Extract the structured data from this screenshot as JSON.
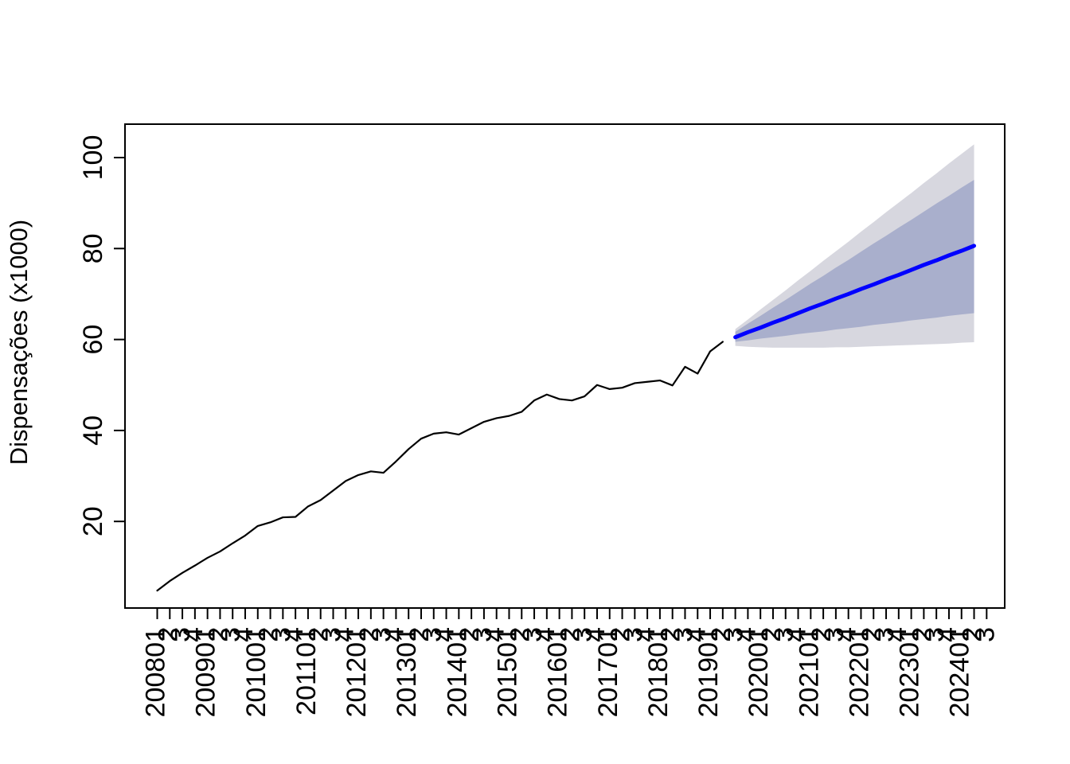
{
  "chart_data": {
    "type": "line",
    "subtype": "time-series-forecast",
    "title": "",
    "xlabel": "",
    "ylabel": "Dispensações (x1000)",
    "grid": false,
    "legend": "none",
    "y_axis": {
      "ticks": [
        20,
        40,
        60,
        80,
        100
      ],
      "tick_labels": [
        "20",
        "40",
        "60",
        "80",
        "100"
      ],
      "ylim": [
        1,
        107.3
      ]
    },
    "x_axis": {
      "frequency": "quarterly",
      "first_period": "2008 Q1",
      "last_period": "2024 Q3",
      "tick_count": 67,
      "tick_labels": [
        "200801",
        "2",
        "3",
        "4",
        "200901",
        "2",
        "3",
        "4",
        "201001",
        "2",
        "3",
        "4",
        "201101",
        "2",
        "3",
        "4",
        "201201",
        "2",
        "3",
        "4",
        "201301",
        "2",
        "3",
        "4",
        "201401",
        "2",
        "3",
        "4",
        "201501",
        "2",
        "3",
        "4",
        "201601",
        "2",
        "3",
        "4",
        "201701",
        "2",
        "3",
        "4",
        "201801",
        "2",
        "3",
        "4",
        "201901",
        "2",
        "3",
        "4",
        "202001",
        "2",
        "3",
        "4",
        "202101",
        "2",
        "3",
        "4",
        "202201",
        "2",
        "3",
        "4",
        "202301",
        "2",
        "3",
        "4",
        "202401",
        "2",
        "3"
      ]
    },
    "series": [
      {
        "name": "historical-dispensations",
        "color": "#000000",
        "start_index": 0,
        "values": [
          4.8,
          6.9,
          8.7,
          10.3,
          12.0,
          13.4,
          15.2,
          16.9,
          19.0,
          19.8,
          20.9,
          21.0,
          23.3,
          24.7,
          26.8,
          28.9,
          30.2,
          31.0,
          30.7,
          33.2,
          35.9,
          38.2,
          39.3,
          39.6,
          39.1,
          40.5,
          41.9,
          42.7,
          43.2,
          44.1,
          46.6,
          47.9,
          46.9,
          46.6,
          47.5,
          50.0,
          49.1,
          49.4,
          50.4,
          50.7,
          51.0,
          49.9,
          54.0,
          52.5,
          57.4,
          59.5
        ]
      },
      {
        "name": "forecast-mean",
        "color": "#0000ff",
        "start_index": 46,
        "values": [
          60.5,
          61.6,
          62.6,
          63.7,
          64.7,
          65.8,
          66.9,
          67.9,
          69.0,
          70.0,
          71.1,
          72.1,
          73.2,
          74.2,
          75.3,
          76.4,
          77.4,
          78.5,
          79.5,
          80.6
        ]
      }
    ],
    "bands": [
      {
        "name": "ci-outer-95",
        "color": "#d7d7df",
        "start_index": 46,
        "upper": [
          62.3,
          64.4,
          66.6,
          68.7,
          70.8,
          73.0,
          75.1,
          77.3,
          79.4,
          81.5,
          83.7,
          85.8,
          88.0,
          90.1,
          92.2,
          94.4,
          96.5,
          98.7,
          100.8,
          102.9
        ],
        "lower": [
          58.6,
          58.4,
          58.3,
          58.2,
          58.2,
          58.2,
          58.2,
          58.2,
          58.3,
          58.3,
          58.4,
          58.5,
          58.6,
          58.7,
          58.8,
          58.9,
          59.0,
          59.1,
          59.3,
          59.4
        ]
      },
      {
        "name": "ci-inner-80",
        "color": "#a9afcc",
        "start_index": 46,
        "upper": [
          61.7,
          63.5,
          65.2,
          67.0,
          68.7,
          70.5,
          72.3,
          74.0,
          75.8,
          77.5,
          79.3,
          81.1,
          82.8,
          84.6,
          86.3,
          88.1,
          89.9,
          91.6,
          93.4,
          95.1
        ],
        "lower": [
          59.5,
          59.8,
          60.2,
          60.5,
          60.8,
          61.2,
          61.5,
          61.8,
          62.2,
          62.5,
          62.8,
          63.2,
          63.5,
          63.8,
          64.2,
          64.5,
          64.8,
          65.2,
          65.5,
          65.8
        ]
      }
    ],
    "colors": {
      "historical_line": "#000000",
      "forecast_line": "#0000ff",
      "ci_inner": "#a9afcc",
      "ci_outer": "#d7d7df",
      "axis": "#000000",
      "background": "#ffffff"
    }
  }
}
